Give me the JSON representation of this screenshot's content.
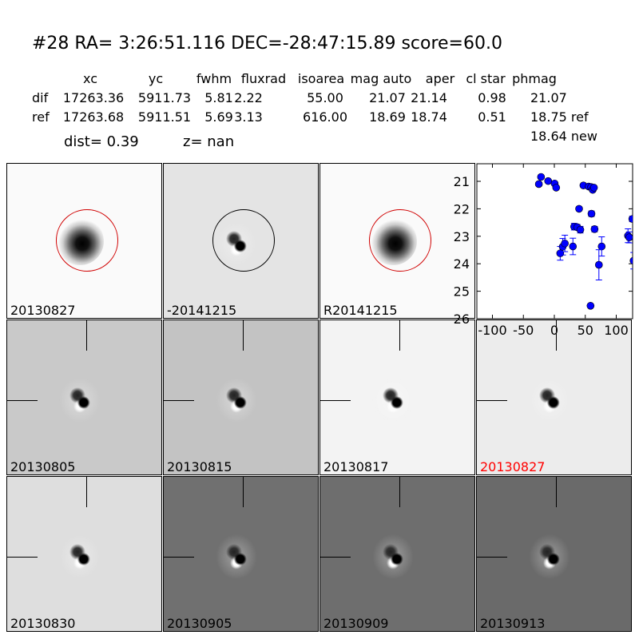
{
  "title": "#28   RA= 3:26:51.116 DEC=-28:47:15.89      score=60.0",
  "table": {
    "headers": [
      "xc",
      "yc",
      "fwhm",
      "fluxrad",
      "isoarea",
      "mag auto",
      "aper",
      "cl star",
      "phmag"
    ],
    "rows": [
      {
        "label": "dif",
        "values": [
          "17263.36",
          "5911.73",
          "5.81",
          "2.22",
          "55.00",
          "21.07",
          "21.14",
          "0.98",
          "21.07"
        ]
      },
      {
        "label": "ref",
        "values": [
          "17263.68",
          "5911.51",
          "5.69",
          "3.13",
          "616.00",
          "18.69",
          "18.74",
          "0.51",
          "18.75 ref"
        ]
      }
    ],
    "extra_phmag": "18.64 new",
    "dist": "dist=  0.39",
    "z": "z=   nan"
  },
  "panels": [
    {
      "label": "20130827",
      "bg": "#fafafa",
      "circle": "#d00000",
      "blob": "dark"
    },
    {
      "label": "-20141215",
      "bg": "#e4e4e4",
      "circle": "#000000",
      "blob": "dipole"
    },
    {
      "label": "R20141215",
      "bg": "#fafafa",
      "circle": "#d00000",
      "blob": "dark"
    },
    {
      "label": "20130805",
      "bg": "#c9c9c9",
      "blob": "dipole"
    },
    {
      "label": "20130815",
      "bg": "#c3c3c3",
      "blob": "dipole"
    },
    {
      "label": "20130817",
      "bg": "#f3f3f3",
      "blob": "dipole"
    },
    {
      "label": "20130827",
      "bg": "#ececec",
      "blob": "dipole",
      "label_color": "#ff0000"
    },
    {
      "label": "20130830",
      "bg": "#dedede",
      "blob": "dipole"
    },
    {
      "label": "20130905",
      "bg": "#707070",
      "blob": "dipole"
    },
    {
      "label": "20130909",
      "bg": "#6e6e6e",
      "blob": "dipole"
    },
    {
      "label": "20130913",
      "bg": "#6a6a6a",
      "blob": "dipole"
    }
  ],
  "chart_data": {
    "type": "scatter",
    "xlim": [
      -125,
      128
    ],
    "ylim": [
      26,
      20.33
    ],
    "y_inverted": true,
    "xticks": [
      -100,
      -50,
      0,
      50,
      100
    ],
    "yticks": [
      21,
      22,
      23,
      24,
      25,
      26
    ],
    "marker_color": "#0000ff",
    "points": [
      {
        "x": -25,
        "y": 21.1,
        "err": 0
      },
      {
        "x": -21.5,
        "y": 20.84,
        "err": 0
      },
      {
        "x": -10,
        "y": 20.99,
        "err": 0
      },
      {
        "x": 0.5,
        "y": 21.08,
        "err": 0
      },
      {
        "x": 3,
        "y": 21.23,
        "err": 0
      },
      {
        "x": 47,
        "y": 21.15,
        "err": 0
      },
      {
        "x": 55.5,
        "y": 21.19,
        "err": 0
      },
      {
        "x": 59.5,
        "y": 21.21,
        "err": 0
      },
      {
        "x": 62,
        "y": 21.31,
        "err": 0
      },
      {
        "x": 64,
        "y": 21.23,
        "err": 0
      },
      {
        "x": 40,
        "y": 22.0,
        "err": 0.07
      },
      {
        "x": 60,
        "y": 22.18,
        "err": 0.1
      },
      {
        "x": 32,
        "y": 22.65,
        "err": 0.12
      },
      {
        "x": 37,
        "y": 22.67,
        "err": 0.1
      },
      {
        "x": 42,
        "y": 22.76,
        "err": 0.12
      },
      {
        "x": 65,
        "y": 22.74,
        "err": 0.1
      },
      {
        "x": 9.5,
        "y": 23.62,
        "err": 0.25
      },
      {
        "x": 13.5,
        "y": 23.38,
        "err": 0.3
      },
      {
        "x": 17,
        "y": 23.26,
        "err": 0.3
      },
      {
        "x": 30,
        "y": 23.37,
        "err": 0.3
      },
      {
        "x": 76.5,
        "y": 23.37,
        "err": 0.35
      },
      {
        "x": 72,
        "y": 24.04,
        "err": 0.55
      },
      {
        "x": 58.5,
        "y": 25.53,
        "err": 0.05
      },
      {
        "x": 119,
        "y": 22.98,
        "err": 0.25
      },
      {
        "x": 121,
        "y": 23.04,
        "err": 0.2
      },
      {
        "x": 126,
        "y": 22.37,
        "err": 0.1
      },
      {
        "x": 128,
        "y": 23.89,
        "err": 0.3
      }
    ]
  }
}
